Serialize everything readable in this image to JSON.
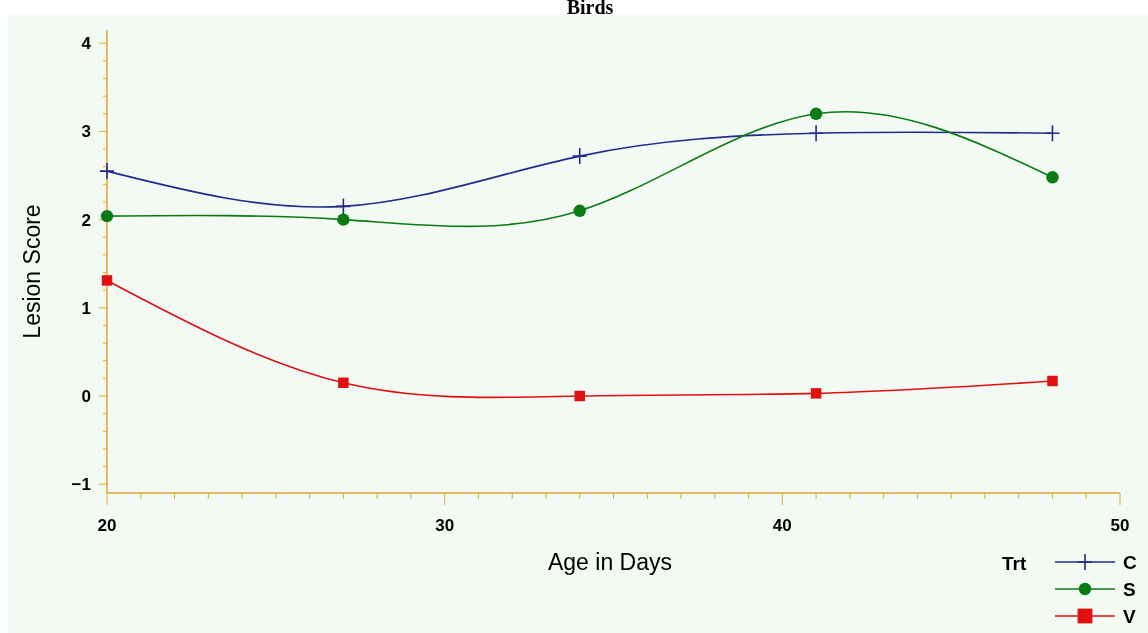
{
  "chart_data": {
    "type": "line",
    "title": "Birds",
    "xlabel": "Age in Days",
    "ylabel": "Lesion Score",
    "legend_title": "Trt",
    "legend": "bottom right",
    "grid": false,
    "x": [
      20,
      27,
      34,
      41,
      48
    ],
    "xlim": [
      20,
      50
    ],
    "xticks": [
      20,
      {
        "value": 21,
        "label": null
      },
      {
        "value": 22,
        "label": null
      },
      {
        "value": 23,
        "label": null
      },
      {
        "value": 24,
        "label": null
      },
      {
        "value": 25,
        "label": null
      },
      {
        "value": 26,
        "label": null
      },
      {
        "value": 27,
        "label": null
      },
      {
        "value": 28,
        "label": null
      },
      {
        "value": 29,
        "label": null
      },
      30,
      {
        "value": 31,
        "label": null
      },
      {
        "value": 32,
        "label": null
      },
      {
        "value": 33,
        "label": null
      },
      {
        "value": 34,
        "label": null
      },
      {
        "value": 35,
        "label": null
      },
      {
        "value": 36,
        "label": null
      },
      {
        "value": 37,
        "label": null
      },
      {
        "value": 38,
        "label": null
      },
      {
        "value": 39,
        "label": null
      },
      40,
      {
        "value": 41,
        "label": null
      },
      {
        "value": 42,
        "label": null
      },
      {
        "value": 43,
        "label": null
      },
      {
        "value": 44,
        "label": null
      },
      {
        "value": 45,
        "label": null
      },
      {
        "value": 46,
        "label": null
      },
      {
        "value": 47,
        "label": null
      },
      {
        "value": 48,
        "label": null
      },
      {
        "value": 49,
        "label": null
      },
      50
    ],
    "ylim": [
      -1.1,
      4.15
    ],
    "yticks": [
      -1,
      {
        "value": -0.8,
        "label": null
      },
      {
        "value": -0.6,
        "label": null
      },
      {
        "value": -0.4,
        "label": null
      },
      {
        "value": -0.2,
        "label": null
      },
      0,
      {
        "value": 0.2,
        "label": null
      },
      {
        "value": 0.4,
        "label": null
      },
      {
        "value": 0.6,
        "label": null
      },
      {
        "value": 0.8,
        "label": null
      },
      1,
      {
        "value": 1.2,
        "label": null
      },
      {
        "value": 1.4,
        "label": null
      },
      {
        "value": 1.6,
        "label": null
      },
      {
        "value": 1.8,
        "label": null
      },
      2,
      {
        "value": 2.2,
        "label": null
      },
      {
        "value": 2.4,
        "label": null
      },
      {
        "value": 2.6,
        "label": null
      },
      {
        "value": 2.8,
        "label": null
      },
      3,
      {
        "value": 3.2,
        "label": null
      },
      {
        "value": 3.4,
        "label": null
      },
      {
        "value": 3.6,
        "label": null
      },
      {
        "value": 3.8,
        "label": null
      },
      4
    ],
    "series": [
      {
        "name": "C",
        "color": "#1f2a8c",
        "marker": "cross",
        "values": [
          2.55,
          2.15,
          2.72,
          2.98,
          2.98
        ]
      },
      {
        "name": "S",
        "color": "#0a7a12",
        "marker": "circle",
        "values": [
          2.04,
          2.0,
          2.1,
          3.2,
          2.48
        ]
      },
      {
        "name": "V",
        "color": "#e01010",
        "marker": "square",
        "values": [
          1.31,
          0.15,
          0.0,
          0.03,
          0.17
        ]
      }
    ]
  }
}
